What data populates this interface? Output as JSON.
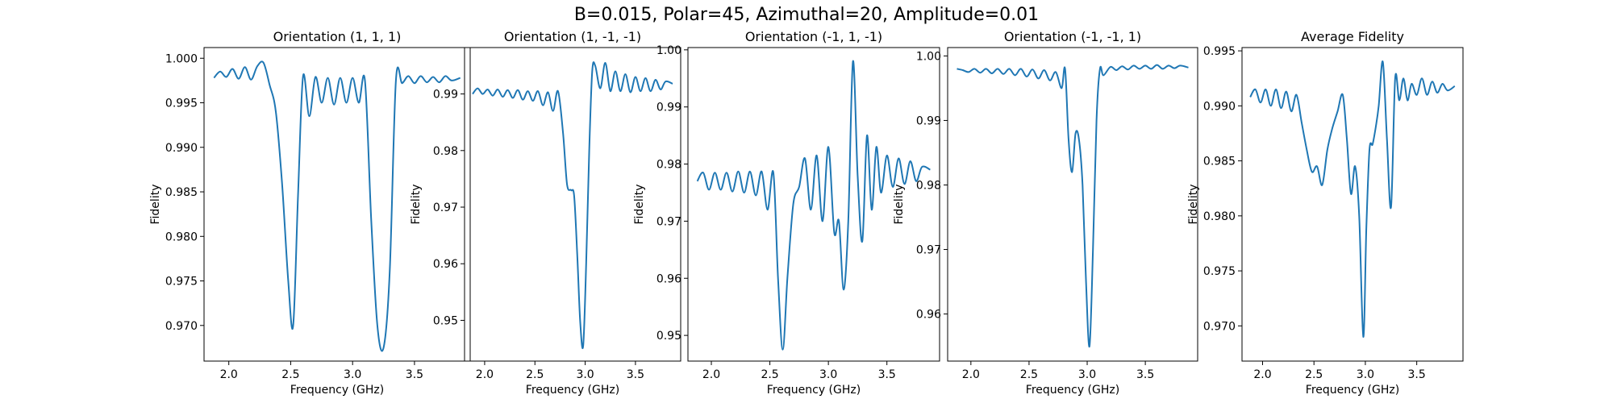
{
  "figure": {
    "suptitle": "B=0.015, Polar=45, Azimuthal=20, Amplitude=0.01",
    "line_color": "#1f77b4"
  },
  "chart_data": [
    {
      "type": "line",
      "title": "Orientation (1, 1, 1)",
      "xlabel": "Frequency (GHz)",
      "ylabel": "Fidelity",
      "xlim": [
        1.8,
        3.95
      ],
      "ylim": [
        0.966,
        1.0012
      ],
      "xticks": [
        2.0,
        2.5,
        3.0,
        3.5
      ],
      "yticks": [
        0.97,
        0.975,
        0.98,
        0.985,
        0.99,
        0.995,
        1.0
      ],
      "ytick_labels": [
        "0.970",
        "0.975",
        "0.980",
        "0.985",
        "0.990",
        "0.995",
        "1.000"
      ],
      "series": [
        {
          "x": [
            1.88,
            1.93,
            1.98,
            2.03,
            2.08,
            2.13,
            2.18,
            2.23,
            2.28,
            2.33,
            2.38,
            2.43,
            2.48,
            2.52,
            2.56,
            2.6,
            2.65,
            2.7,
            2.75,
            2.8,
            2.85,
            2.9,
            2.95,
            3.0,
            3.05,
            3.1,
            3.15,
            3.2,
            3.25,
            3.3,
            3.35,
            3.4,
            3.45,
            3.5,
            3.55,
            3.6,
            3.65,
            3.7,
            3.75,
            3.8,
            3.87
          ],
          "y": [
            0.9978,
            0.9985,
            0.9979,
            0.9988,
            0.9977,
            0.999,
            0.9976,
            0.9991,
            0.9995,
            0.997,
            0.994,
            0.986,
            0.975,
            0.97,
            0.985,
            0.998,
            0.9935,
            0.9979,
            0.995,
            0.9978,
            0.9948,
            0.9978,
            0.995,
            0.9978,
            0.995,
            0.9975,
            0.982,
            0.97,
            0.9675,
            0.976,
            0.9975,
            0.9972,
            0.998,
            0.9972,
            0.998,
            0.9973,
            0.9979,
            0.9973,
            0.998,
            0.9975,
            0.9978
          ]
        }
      ]
    },
    {
      "type": "line",
      "title": "Orientation (1, -1, -1)",
      "xlabel": "Frequency (GHz)",
      "ylabel": "Fidelity",
      "xlim": [
        1.8,
        3.95
      ],
      "ylim": [
        0.9428,
        0.9982
      ],
      "xticks": [
        2.0,
        2.5,
        3.0,
        3.5
      ],
      "yticks": [
        0.95,
        0.96,
        0.97,
        0.98,
        0.99
      ],
      "ytick_labels": [
        "0.95",
        "0.96",
        "0.97",
        "0.98",
        "0.99"
      ],
      "series": [
        {
          "x": [
            1.88,
            1.93,
            1.98,
            2.03,
            2.08,
            2.13,
            2.18,
            2.23,
            2.28,
            2.33,
            2.38,
            2.43,
            2.48,
            2.53,
            2.58,
            2.63,
            2.68,
            2.73,
            2.78,
            2.82,
            2.86,
            2.89,
            2.92,
            2.95,
            2.98,
            3.01,
            3.04,
            3.07,
            3.1,
            3.15,
            3.2,
            3.25,
            3.3,
            3.35,
            3.4,
            3.45,
            3.5,
            3.55,
            3.6,
            3.65,
            3.7,
            3.75,
            3.8,
            3.87
          ],
          "y": [
            0.99,
            0.991,
            0.99,
            0.9908,
            0.9897,
            0.9908,
            0.9895,
            0.9907,
            0.9893,
            0.9907,
            0.989,
            0.9905,
            0.9888,
            0.9905,
            0.988,
            0.9903,
            0.987,
            0.9905,
            0.983,
            0.974,
            0.973,
            0.972,
            0.962,
            0.95,
            0.9455,
            0.96,
            0.98,
            0.994,
            0.995,
            0.991,
            0.9955,
            0.9905,
            0.994,
            0.9905,
            0.9935,
            0.9903,
            0.993,
            0.9905,
            0.9928,
            0.9905,
            0.9925,
            0.9908,
            0.9922,
            0.9918
          ]
        }
      ]
    },
    {
      "type": "line",
      "title": "Orientation (-1, 1, -1)",
      "xlabel": "Frequency (GHz)",
      "ylabel": "Fidelity",
      "xlim": [
        1.8,
        3.95
      ],
      "ylim": [
        0.9455,
        1.0004
      ],
      "xticks": [
        2.0,
        2.5,
        3.0,
        3.5
      ],
      "yticks": [
        0.95,
        0.96,
        0.97,
        0.98,
        0.99,
        1.0
      ],
      "ytick_labels": [
        "0.95",
        "0.96",
        "0.97",
        "0.98",
        "0.99",
        "1.00"
      ],
      "series": [
        {
          "x": [
            1.88,
            1.93,
            1.98,
            2.03,
            2.08,
            2.13,
            2.18,
            2.23,
            2.28,
            2.33,
            2.38,
            2.43,
            2.48,
            2.53,
            2.57,
            2.61,
            2.65,
            2.7,
            2.75,
            2.8,
            2.85,
            2.9,
            2.95,
            3.0,
            3.05,
            3.09,
            3.13,
            3.17,
            3.21,
            3.25,
            3.29,
            3.33,
            3.37,
            3.41,
            3.45,
            3.5,
            3.55,
            3.6,
            3.65,
            3.7,
            3.75,
            3.8,
            3.87
          ],
          "y": [
            0.977,
            0.9785,
            0.9755,
            0.9785,
            0.9755,
            0.9785,
            0.9752,
            0.9787,
            0.975,
            0.9787,
            0.9745,
            0.9787,
            0.972,
            0.9785,
            0.96,
            0.9475,
            0.96,
            0.973,
            0.976,
            0.981,
            0.972,
            0.9815,
            0.97,
            0.983,
            0.968,
            0.97,
            0.958,
            0.97,
            0.998,
            0.978,
            0.9665,
            0.985,
            0.972,
            0.983,
            0.975,
            0.9815,
            0.976,
            0.981,
            0.9765,
            0.9805,
            0.977,
            0.9795,
            0.979
          ]
        }
      ]
    },
    {
      "type": "line",
      "title": "Orientation (-1, -1, 1)",
      "xlabel": "Frequency (GHz)",
      "ylabel": "Fidelity",
      "xlim": [
        1.8,
        3.95
      ],
      "ylim": [
        0.9527,
        1.0013
      ],
      "xticks": [
        2.0,
        2.5,
        3.0,
        3.5
      ],
      "yticks": [
        0.96,
        0.97,
        0.98,
        0.99,
        1.0
      ],
      "ytick_labels": [
        "0.96",
        "0.97",
        "0.98",
        "0.99",
        "1.00"
      ],
      "series": [
        {
          "x": [
            1.88,
            1.93,
            1.98,
            2.03,
            2.08,
            2.13,
            2.18,
            2.23,
            2.28,
            2.33,
            2.38,
            2.43,
            2.48,
            2.53,
            2.58,
            2.63,
            2.68,
            2.73,
            2.78,
            2.81,
            2.84,
            2.87,
            2.9,
            2.93,
            2.96,
            2.99,
            3.02,
            3.05,
            3.08,
            3.11,
            3.14,
            3.2,
            3.25,
            3.3,
            3.35,
            3.4,
            3.45,
            3.5,
            3.55,
            3.6,
            3.65,
            3.7,
            3.75,
            3.8,
            3.87
          ],
          "y": [
            0.998,
            0.9978,
            0.9975,
            0.998,
            0.9974,
            0.998,
            0.9973,
            0.998,
            0.9972,
            0.998,
            0.997,
            0.998,
            0.9968,
            0.9979,
            0.9965,
            0.9978,
            0.9962,
            0.9975,
            0.995,
            0.998,
            0.987,
            0.982,
            0.988,
            0.987,
            0.98,
            0.965,
            0.955,
            0.97,
            0.99,
            0.998,
            0.997,
            0.9983,
            0.9978,
            0.9984,
            0.9979,
            0.9985,
            0.998,
            0.9985,
            0.998,
            0.9986,
            0.998,
            0.9985,
            0.9981,
            0.9985,
            0.9982
          ]
        }
      ]
    },
    {
      "type": "line",
      "title": "Average Fidelity",
      "xlabel": "Frequency (GHz)",
      "ylabel": "Fidelity",
      "xlim": [
        1.8,
        3.95
      ],
      "ylim": [
        0.9668,
        0.9953
      ],
      "xticks": [
        2.0,
        2.5,
        3.0,
        3.5
      ],
      "yticks": [
        0.97,
        0.975,
        0.98,
        0.985,
        0.99,
        0.995
      ],
      "ytick_labels": [
        "0.970",
        "0.975",
        "0.980",
        "0.985",
        "0.990",
        "0.995"
      ],
      "series": [
        {
          "x": [
            1.88,
            1.93,
            1.98,
            2.03,
            2.08,
            2.13,
            2.18,
            2.23,
            2.28,
            2.33,
            2.38,
            2.43,
            2.48,
            2.53,
            2.58,
            2.63,
            2.68,
            2.73,
            2.78,
            2.82,
            2.86,
            2.9,
            2.94,
            2.98,
            3.01,
            3.04,
            3.07,
            3.1,
            3.13,
            3.17,
            3.21,
            3.25,
            3.29,
            3.33,
            3.37,
            3.41,
            3.45,
            3.5,
            3.55,
            3.6,
            3.65,
            3.7,
            3.75,
            3.8,
            3.87
          ],
          "y": [
            0.9908,
            0.9915,
            0.9903,
            0.9915,
            0.99,
            0.9915,
            0.9898,
            0.9913,
            0.9895,
            0.991,
            0.9885,
            0.986,
            0.984,
            0.9845,
            0.9828,
            0.986,
            0.988,
            0.9895,
            0.991,
            0.987,
            0.982,
            0.9845,
            0.98,
            0.969,
            0.979,
            0.986,
            0.9865,
            0.988,
            0.99,
            0.994,
            0.987,
            0.9808,
            0.9925,
            0.9905,
            0.9925,
            0.9905,
            0.992,
            0.991,
            0.9925,
            0.991,
            0.9922,
            0.9912,
            0.992,
            0.9914,
            0.9918
          ]
        }
      ]
    }
  ]
}
